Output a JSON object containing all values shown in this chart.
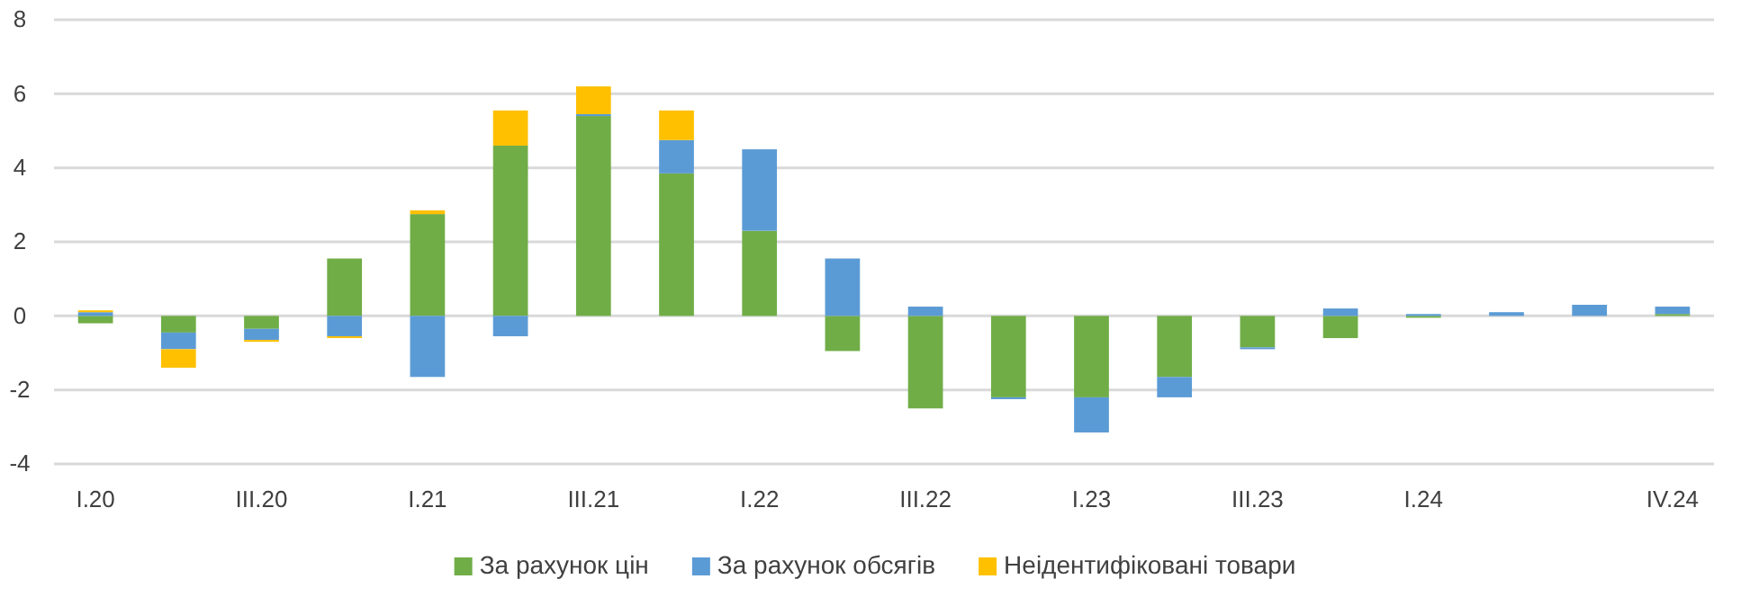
{
  "chart_data": {
    "type": "bar",
    "stacked": true,
    "categories": [
      "I.20",
      null,
      "III.20",
      null,
      "I.21",
      null,
      "III.21",
      null,
      "I.22",
      null,
      "III.22",
      null,
      "I.23",
      null,
      "III.23",
      null,
      "I.24",
      null,
      null,
      "IV.24"
    ],
    "series": [
      {
        "name": "За рахунок цін",
        "color": "#70ad47",
        "values": [
          -0.2,
          -0.45,
          -0.35,
          1.55,
          2.75,
          4.6,
          5.4,
          3.85,
          2.3,
          -0.95,
          -2.5,
          -2.2,
          -2.2,
          -1.65,
          -0.85,
          -0.6,
          -0.05,
          null,
          null,
          0.05
        ]
      },
      {
        "name": "За рахунок обсягів",
        "color": "#5b9bd5",
        "values": [
          0.1,
          -0.45,
          -0.3,
          -0.55,
          -1.65,
          -0.55,
          0.05,
          0.9,
          2.2,
          1.55,
          0.25,
          -0.05,
          -0.95,
          -0.55,
          -0.05,
          0.2,
          0.05,
          0.1,
          0.3,
          0.2
        ]
      },
      {
        "name": "Неідентифіковані товари",
        "color": "#ffc000",
        "values": [
          0.05,
          -0.5,
          -0.05,
          -0.05,
          0.1,
          0.95,
          0.75,
          0.8,
          null,
          null,
          null,
          null,
          null,
          null,
          null,
          null,
          null,
          null,
          null,
          null
        ]
      }
    ],
    "ylim": [
      -4,
      8
    ],
    "yticks": [
      -4,
      -2,
      0,
      2,
      4,
      6,
      8
    ],
    "grid": "y",
    "legend": "bottom"
  }
}
